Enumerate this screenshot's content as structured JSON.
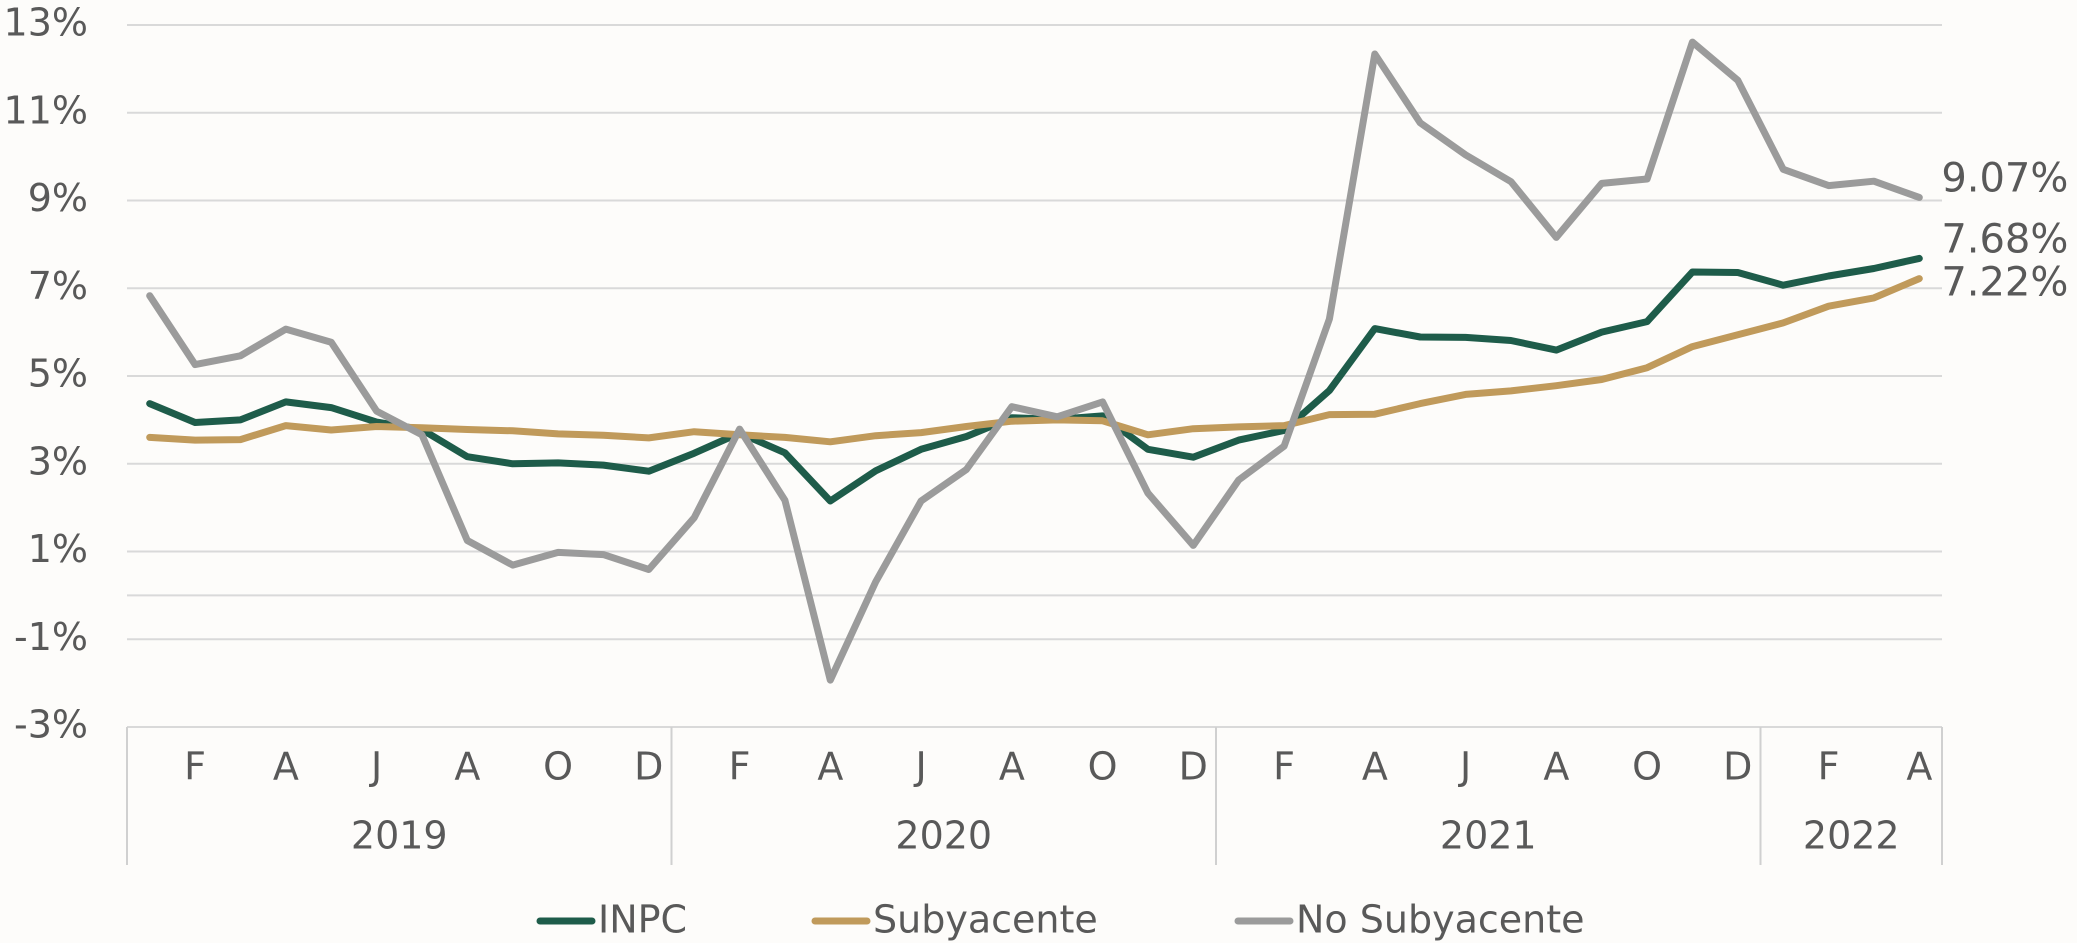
{
  "chart_data": {
    "type": "line",
    "categories": [
      null,
      "F",
      null,
      "A",
      null,
      "J",
      null,
      "A",
      null,
      "O",
      null,
      "D",
      null,
      "F",
      null,
      "A",
      null,
      "J",
      null,
      "A",
      null,
      "O",
      null,
      "D",
      null,
      "F",
      null,
      "A",
      null,
      "J",
      null,
      "A",
      null,
      "O",
      null,
      "D",
      null,
      "F",
      null,
      "A"
    ],
    "year_groups": [
      {
        "label": "2019",
        "size": 12
      },
      {
        "label": "2020",
        "size": 12
      },
      {
        "label": "2021",
        "size": 12
      },
      {
        "label": "2022",
        "size": 4
      }
    ],
    "ylim": [
      -3,
      13
    ],
    "yticks": [
      {
        "value": -3,
        "label": "-3%"
      },
      {
        "value": -1,
        "label": "-1%"
      },
      {
        "value": 1,
        "label": "1%"
      },
      {
        "value": 3,
        "label": "3%"
      },
      {
        "value": 5,
        "label": "5%"
      },
      {
        "value": 7,
        "label": "7%"
      },
      {
        "value": 9,
        "label": "9%"
      },
      {
        "value": 11,
        "label": "11%"
      },
      {
        "value": 13,
        "label": "13%"
      }
    ],
    "grid": true,
    "legend": "bottom",
    "series": [
      {
        "name": "INPC",
        "color": "#1e5c4a",
        "values": [
          4.37,
          3.94,
          4.0,
          4.41,
          4.28,
          3.95,
          3.78,
          3.16,
          3.0,
          3.02,
          2.97,
          2.83,
          3.24,
          3.7,
          3.25,
          2.15,
          2.84,
          3.33,
          3.62,
          4.05,
          4.01,
          4.09,
          3.33,
          3.15,
          3.54,
          3.76,
          4.67,
          6.08,
          5.89,
          5.88,
          5.81,
          5.59,
          6.0,
          6.24,
          7.37,
          7.36,
          7.07,
          7.28,
          7.45,
          7.68
        ],
        "value_labels": [
          null,
          null,
          null,
          null,
          null,
          null,
          null,
          null,
          null,
          null,
          null,
          null,
          null,
          null,
          null,
          null,
          null,
          null,
          null,
          null,
          null,
          null,
          null,
          null,
          null,
          null,
          null,
          null,
          null,
          null,
          null,
          null,
          null,
          null,
          null,
          null,
          null,
          null,
          null,
          "7.68%"
        ]
      },
      {
        "name": "Subyacente",
        "color": "#c09a5b",
        "values": [
          3.6,
          3.54,
          3.55,
          3.87,
          3.77,
          3.85,
          3.82,
          3.78,
          3.75,
          3.68,
          3.65,
          3.59,
          3.73,
          3.66,
          3.6,
          3.5,
          3.64,
          3.71,
          3.85,
          3.97,
          4.0,
          3.98,
          3.66,
          3.8,
          3.84,
          3.87,
          4.12,
          4.13,
          4.37,
          4.58,
          4.66,
          4.78,
          4.92,
          5.19,
          5.67,
          5.94,
          6.21,
          6.59,
          6.78,
          7.22
        ],
        "value_labels": [
          null,
          null,
          null,
          null,
          null,
          null,
          null,
          null,
          null,
          null,
          null,
          null,
          null,
          null,
          null,
          null,
          null,
          null,
          null,
          null,
          null,
          null,
          null,
          null,
          null,
          null,
          null,
          null,
          null,
          null,
          null,
          null,
          null,
          null,
          null,
          null,
          null,
          null,
          null,
          "7.22%"
        ]
      },
      {
        "name": "No Subyacente",
        "color": "#9b9b9b",
        "values": [
          6.83,
          5.26,
          5.46,
          6.07,
          5.77,
          4.2,
          3.66,
          1.25,
          0.69,
          0.98,
          0.93,
          0.59,
          1.77,
          3.79,
          2.17,
          -1.93,
          0.31,
          2.15,
          2.87,
          4.3,
          4.07,
          4.41,
          2.33,
          1.14,
          2.63,
          3.4,
          6.3,
          12.34,
          10.77,
          10.04,
          9.43,
          8.16,
          9.39,
          9.49,
          12.61,
          11.74,
          9.71,
          9.34,
          9.44,
          9.07
        ],
        "value_labels": [
          null,
          null,
          null,
          null,
          null,
          null,
          null,
          null,
          null,
          null,
          null,
          null,
          null,
          null,
          null,
          null,
          null,
          null,
          null,
          null,
          null,
          null,
          null,
          null,
          null,
          null,
          null,
          null,
          null,
          null,
          null,
          null,
          null,
          null,
          null,
          null,
          null,
          null,
          null,
          "9.07%"
        ]
      }
    ]
  }
}
